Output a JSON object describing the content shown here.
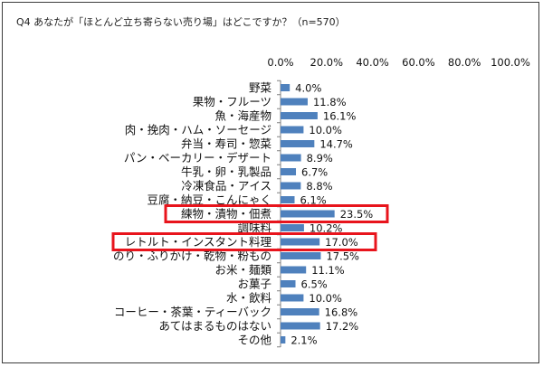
{
  "title": "Q4 あなたが「ほとんど立ち寄らない売り場」はどこですか？（n=570）",
  "colors": {
    "bar": "#4F81BD",
    "highlight": "#E8141C",
    "axis": "#808080"
  },
  "chart_data": {
    "type": "bar",
    "orientation": "horizontal",
    "title": "Q4 あなたが「ほとんど立ち寄らない売り場」はどこですか？（n=570）",
    "xlim": [
      0,
      100
    ],
    "ticks": [
      0,
      20,
      40,
      60,
      80,
      100
    ],
    "tick_labels": [
      "0.0%",
      "20.0%",
      "40.0%",
      "60.0%",
      "80.0%",
      "100.0%"
    ],
    "tick_position": "top",
    "grid": false,
    "categories": [
      "野菜",
      "果物・フルーツ",
      "魚・海産物",
      "肉・挽肉・ハム・ソーセージ",
      "弁当・寿司・惣菜",
      "パン・ベーカリー・デザート",
      "牛乳・卵・乳製品",
      "冷凍食品・アイス",
      "豆腐・納豆・こんにゃく",
      "練物・漬物・佃煮",
      "調味料",
      "レトルト・インスタント料理",
      "のり・ふりかけ・乾物・粉もの",
      "お米・麺類",
      "お菓子",
      "水・飲料",
      "コーヒー・茶葉・ティーバック",
      "あてはまるものはない",
      "その他"
    ],
    "values": [
      4.0,
      11.8,
      16.1,
      10.0,
      14.7,
      8.9,
      6.7,
      8.8,
      6.1,
      23.5,
      10.2,
      17.0,
      17.5,
      11.1,
      6.5,
      10.0,
      16.8,
      17.2,
      2.1
    ],
    "value_labels": [
      "4.0%",
      "11.8%",
      "16.1%",
      "10.0%",
      "14.7%",
      "8.9%",
      "6.7%",
      "8.8%",
      "6.1%",
      "23.5%",
      "10.2%",
      "17.0%",
      "17.5%",
      "11.1%",
      "6.5%",
      "10.0%",
      "16.8%",
      "17.2%",
      "2.1%"
    ],
    "highlighted": [
      "練物・漬物・佃煮",
      "レトルト・インスタント料理"
    ]
  }
}
